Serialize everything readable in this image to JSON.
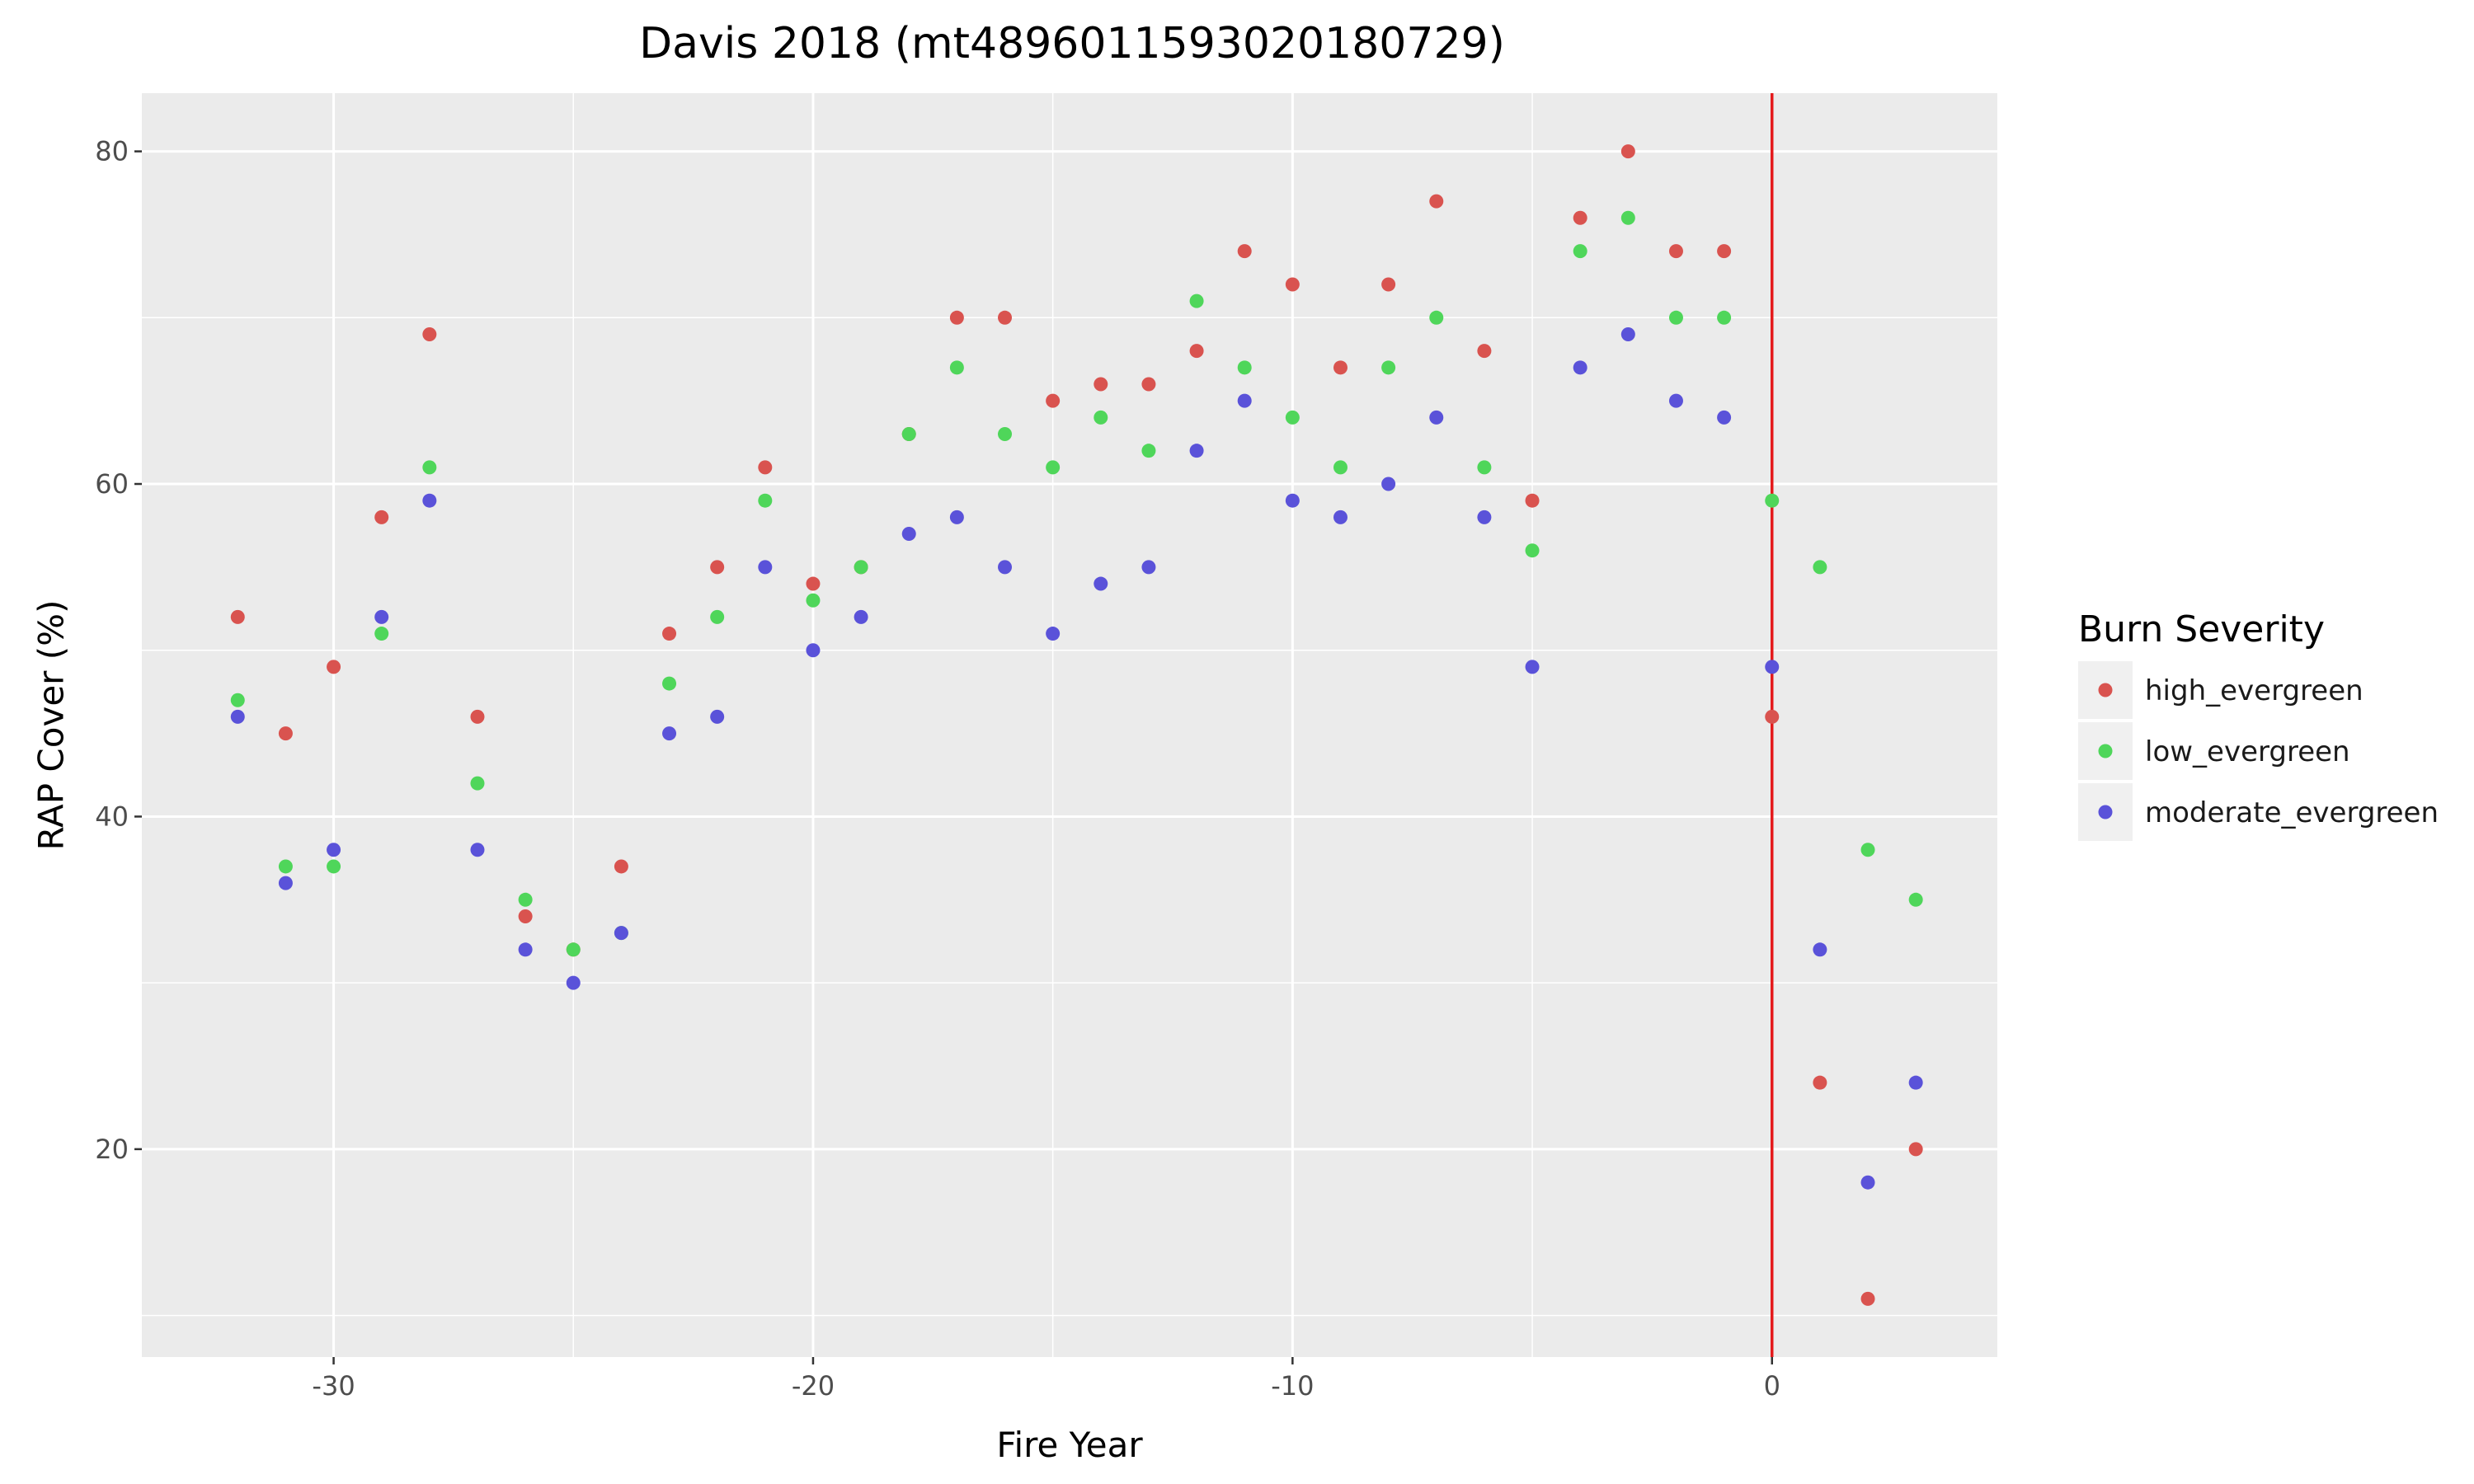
{
  "chart_data": {
    "type": "scatter",
    "title": "Davis 2018 (mt4896011593020180729)",
    "xlabel": "Fire Year",
    "ylabel": "RAP Cover (%)",
    "xlim": [
      -34,
      4.7
    ],
    "ylim": [
      7.5,
      83.5
    ],
    "x_ticks": [
      -30,
      -20,
      -10,
      0
    ],
    "y_ticks": [
      20,
      40,
      60,
      80
    ],
    "x_tick_labels": [
      "-30",
      "-20",
      "-10",
      "0"
    ],
    "y_tick_labels": [
      "20",
      "40",
      "60",
      "80"
    ],
    "grid": true,
    "reference_line": {
      "x": 0,
      "color": "#e41a1c"
    },
    "legend": {
      "title": "Burn Severity",
      "position": "right"
    },
    "series": [
      {
        "name": "high_evergreen",
        "color": "#d9534f",
        "x": [
          -32,
          -31,
          -30,
          -29,
          -28,
          -27,
          -26,
          -25,
          -24,
          -23,
          -22,
          -21,
          -20,
          -19,
          -18,
          -17,
          -16,
          -15,
          -14,
          -13,
          -12,
          -11,
          -10,
          -9,
          -8,
          -7,
          -6,
          -5,
          -4,
          -3,
          -2,
          -1,
          0,
          1,
          2,
          3
        ],
        "y": [
          52,
          45,
          49,
          58,
          69,
          46,
          34,
          32,
          37,
          51,
          55,
          61,
          54,
          55,
          63,
          70,
          70,
          65,
          66,
          66,
          68,
          74,
          72,
          67,
          72,
          77,
          68,
          59,
          76,
          80,
          74,
          74,
          46,
          24,
          11,
          20
        ]
      },
      {
        "name": "low_evergreen",
        "color": "#4fd65a",
        "x": [
          -32,
          -31,
          -30,
          -29,
          -28,
          -27,
          -26,
          -25,
          -24,
          -23,
          -22,
          -21,
          -20,
          -19,
          -18,
          -17,
          -16,
          -15,
          -14,
          -13,
          -12,
          -11,
          -10,
          -9,
          -8,
          -7,
          -6,
          -5,
          -4,
          -3,
          -2,
          -1,
          0,
          1,
          2,
          3
        ],
        "y": [
          47,
          37,
          37,
          51,
          61,
          42,
          35,
          32,
          33,
          48,
          52,
          59,
          53,
          55,
          63,
          67,
          63,
          61,
          64,
          62,
          71,
          67,
          64,
          61,
          67,
          70,
          61,
          56,
          74,
          76,
          70,
          70,
          59,
          55,
          38,
          35
        ]
      },
      {
        "name": "moderate_evergreen",
        "color": "#5a52d9",
        "x": [
          -32,
          -31,
          -30,
          -29,
          -28,
          -27,
          -26,
          -25,
          -24,
          -23,
          -22,
          -21,
          -20,
          -19,
          -18,
          -17,
          -16,
          -15,
          -14,
          -13,
          -12,
          -11,
          -10,
          -9,
          -8,
          -7,
          -6,
          -5,
          -4,
          -3,
          -2,
          -1,
          0,
          1,
          2,
          3
        ],
        "y": [
          46,
          36,
          38,
          52,
          59,
          38,
          32,
          30,
          33,
          45,
          46,
          55,
          50,
          52,
          57,
          58,
          55,
          51,
          54,
          55,
          62,
          65,
          59,
          58,
          60,
          64,
          58,
          49,
          67,
          69,
          65,
          64,
          49,
          32,
          18,
          24
        ]
      }
    ]
  }
}
